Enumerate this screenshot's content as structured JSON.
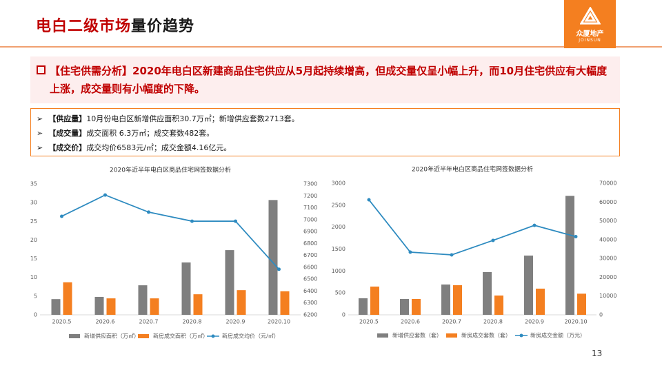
{
  "header": {
    "title_highlight": "电白二级市场",
    "title_rest": "量价趋势",
    "logo_cn": "众厦地产",
    "logo_en": "JOINSUN"
  },
  "summary": {
    "label": "【住宅供需分析】",
    "text": "2020年电白区新建商品住宅供应从5月起持续增高，但成交量仅呈小幅上升，而10月住宅供应有大幅度上涨，成交量则有小幅度的下降。"
  },
  "bullets": [
    {
      "label": "【供应量】",
      "text": "10月份电白区新增供应面积30.7万㎡；新增供应套数2713套。"
    },
    {
      "label": "【成交量】",
      "text": "成交面积 6.3万㎡；成交套数482套。"
    },
    {
      "label": "【成交价】",
      "text": "成交均价6583元/㎡；成交金额4.16亿元。"
    }
  ],
  "page_number": "13",
  "chart_data": [
    {
      "type": "combo",
      "title": "2020年近半年电白区商品住宅网签数据分析",
      "categories": [
        "2020.5",
        "2020.6",
        "2020.7",
        "2020.8",
        "2020.9",
        "2020.10"
      ],
      "series": [
        {
          "name": "新增供应面积（万㎡）",
          "type": "bar",
          "color": "#7f7f7f",
          "values": [
            4.2,
            4.8,
            7.9,
            14.0,
            17.3,
            30.7
          ]
        },
        {
          "name": "新房成交面积（万㎡）",
          "type": "bar",
          "color": "#f47f20",
          "values": [
            8.7,
            4.4,
            4.4,
            5.5,
            6.6,
            6.3
          ]
        },
        {
          "name": "新房成交均价（元/㎡）",
          "type": "line",
          "axis": "y2",
          "color": "#2e8bc0",
          "values": [
            7028,
            7207,
            7063,
            6987,
            6987,
            6583
          ]
        }
      ],
      "ylim": [
        0,
        35
      ],
      "yticks": [
        0,
        5,
        10,
        15,
        20,
        25,
        30,
        35
      ],
      "y2lim": [
        6200,
        7300
      ],
      "y2ticks": [
        6200,
        6300,
        6400,
        6500,
        6600,
        6700,
        6800,
        6900,
        7000,
        7100,
        7200,
        7300
      ]
    },
    {
      "type": "combo",
      "title": "2020年近半年电白区商品住宅网签数据分析",
      "categories": [
        "2020.5",
        "2020.6",
        "2020.7",
        "2020.8",
        "2020.9",
        "2020.10"
      ],
      "series": [
        {
          "name": "新增供应套数（套）",
          "type": "bar",
          "color": "#7f7f7f",
          "values": [
            377,
            361,
            691,
            974,
            1351,
            2713
          ]
        },
        {
          "name": "新房成交套数（套）",
          "type": "bar",
          "color": "#f47f20",
          "values": [
            644,
            361,
            675,
            440,
            597,
            482
          ]
        },
        {
          "name": "新房成交金额（万元）",
          "type": "line",
          "axis": "y2",
          "color": "#2e8bc0",
          "values": [
            61200,
            33350,
            31900,
            39600,
            47600,
            41600
          ]
        }
      ],
      "ylim": [
        0,
        3000
      ],
      "yticks": [
        0,
        500,
        1000,
        1500,
        2000,
        2500,
        3000
      ],
      "y2lim": [
        0,
        70000
      ],
      "y2ticks": [
        0,
        10000,
        20000,
        30000,
        40000,
        50000,
        60000,
        70000
      ]
    }
  ]
}
